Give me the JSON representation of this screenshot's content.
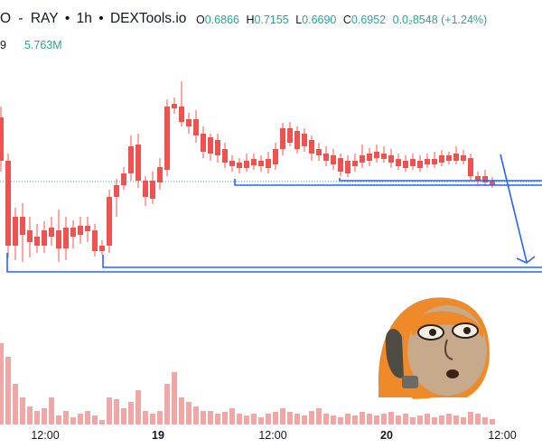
{
  "header": {
    "symbol_fragment": "O",
    "sep1": "-",
    "pair_quote": "RAY",
    "dot1": "•",
    "interval": "1h",
    "dot2": "•",
    "source": "DEXTools.io"
  },
  "ohlc": {
    "o_label": "O",
    "o_value": "0.6866",
    "h_label": "H",
    "h_value": "0.7155",
    "l_label": "L",
    "l_value": "0.6690",
    "c_label": "C",
    "c_value": "0.6952",
    "change": "0.0₂8548 (+1.24%)"
  },
  "volume": {
    "label_fragment": "9",
    "value": "5.763M"
  },
  "xaxis": {
    "labels": [
      {
        "text": "12:00",
        "bold": false
      },
      {
        "text": "19",
        "bold": true
      },
      {
        "text": "12:00",
        "bold": false
      },
      {
        "text": "20",
        "bold": true
      },
      {
        "text": "12:00",
        "bold": false
      }
    ]
  },
  "colors": {
    "up": "#26a69a",
    "down": "#ef5350",
    "up_volume": "#9ed8d0",
    "down_volume": "#f2a6a6",
    "lines": "#2962ff",
    "background": "#ffffff"
  },
  "icons": {
    "sticker": "cartoon-face-sticker",
    "arrow": "trend-down-arrow"
  }
}
